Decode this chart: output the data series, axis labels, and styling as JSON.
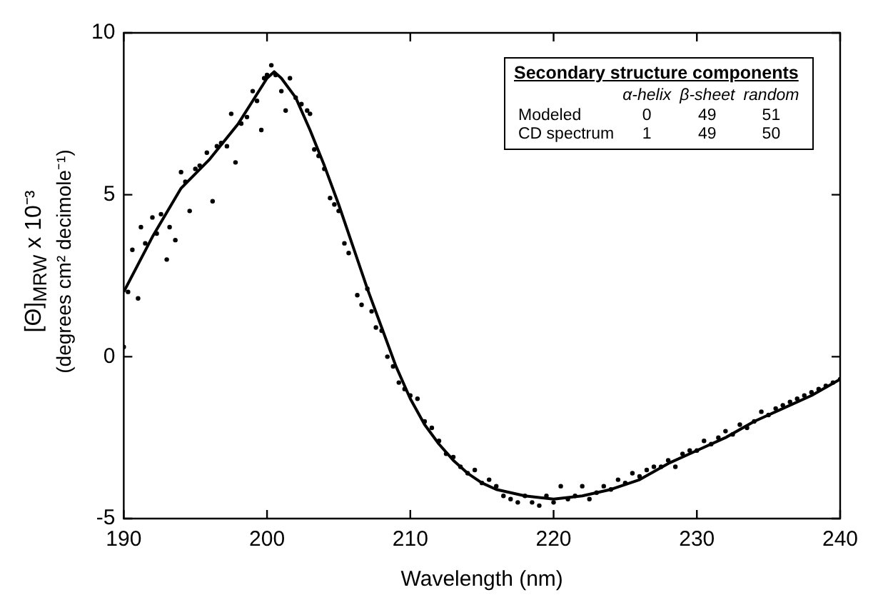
{
  "chart_data": {
    "type": "scatter",
    "xlabel": "Wavelength (nm)",
    "ylabel": "[Θ]$_{MRW}$ x 10⁻³\n(degrees cm² decimole⁻¹)",
    "xlim": [
      190,
      240
    ],
    "xticks": [
      190,
      200,
      210,
      220,
      230,
      240
    ],
    "ylim": [
      -5,
      10
    ],
    "yticks": [
      -5,
      0,
      5,
      10
    ],
    "grid": false,
    "legend": false,
    "annotations": [
      "Secondary structure components",
      "α-helix",
      "β-sheet",
      "random",
      "Modeled",
      "0",
      "49",
      "51",
      "CD spectrum",
      "1",
      "49",
      "50"
    ],
    "series": [
      {
        "color": "#000000",
        "marker": "circle",
        "x": [
          190,
          190.3,
          190.6,
          191,
          191.2,
          191.5,
          192,
          192.3,
          192.6,
          193,
          193.2,
          193.6,
          194,
          194.3,
          194.6,
          195,
          195.3,
          195.8,
          196.2,
          196.5,
          196.8,
          197.2,
          197.5,
          197.8,
          198.2,
          198.6,
          199,
          199.3,
          199.6,
          199.8,
          200,
          200.3,
          200.6,
          201,
          201.3,
          201.6,
          202,
          202.4,
          202.8,
          203,
          203.3,
          203.6,
          204,
          204.4,
          204.7,
          205,
          205.4,
          205.7,
          206.3,
          206.6,
          207,
          207.3,
          207.6,
          208,
          208.4,
          208.8,
          209.2,
          209.6,
          210,
          210.5,
          211,
          211.5,
          212,
          212.5,
          213,
          213.5,
          214,
          214.5,
          215,
          215.5,
          216,
          216.5,
          217,
          217.5,
          218,
          218.5,
          219,
          219.5,
          220,
          220.5,
          221,
          221.5,
          222,
          222.5,
          223,
          223.5,
          224,
          224.5,
          225,
          225.5,
          226,
          226.5,
          227,
          227.5,
          228,
          228.5,
          229,
          229.5,
          230,
          230.5,
          231,
          231.5,
          232,
          232.5,
          233,
          233.5,
          234,
          234.5,
          235,
          235.5,
          236,
          236.5,
          237,
          237.5,
          238,
          238.5,
          239,
          239.5,
          240
        ],
        "values": [
          0.3,
          2.0,
          3.3,
          1.8,
          4.0,
          3.5,
          4.3,
          3.8,
          4.4,
          3.0,
          4.0,
          3.6,
          5.7,
          5.4,
          4.5,
          5.8,
          5.9,
          6.3,
          4.8,
          6.5,
          6.6,
          6.5,
          7.5,
          6.0,
          7.2,
          7.4,
          8.2,
          7.9,
          7.0,
          8.6,
          8.7,
          9.0,
          8.7,
          8.2,
          7.6,
          8.6,
          8.0,
          7.8,
          7.6,
          7.5,
          6.4,
          6.2,
          5.8,
          4.9,
          4.7,
          4.5,
          3.5,
          3.2,
          1.9,
          1.6,
          2.1,
          1.4,
          0.9,
          0.8,
          0.0,
          -0.3,
          -0.8,
          -1.0,
          -1.2,
          -1.3,
          -2.0,
          -2.2,
          -2.6,
          -3.0,
          -3.1,
          -3.4,
          -3.6,
          -3.5,
          -3.9,
          -3.8,
          -4.0,
          -4.3,
          -4.4,
          -4.5,
          -4.3,
          -4.5,
          -4.6,
          -4.3,
          -4.5,
          -4.0,
          -4.4,
          -4.3,
          -4.0,
          -4.4,
          -4.2,
          -4.0,
          -4.1,
          -3.8,
          -3.9,
          -3.6,
          -3.7,
          -3.5,
          -3.4,
          -3.4,
          -3.2,
          -3.4,
          -3.0,
          -2.9,
          -2.9,
          -2.6,
          -2.7,
          -2.5,
          -2.3,
          -2.4,
          -2.1,
          -2.2,
          -2.0,
          -1.7,
          -1.8,
          -1.6,
          -1.5,
          -1.4,
          -1.3,
          -1.2,
          -1.1,
          -1.0,
          -0.9,
          -0.8,
          -0.7
        ]
      },
      {
        "type": "line",
        "color": "#000000",
        "marker": "none",
        "x": [
          190,
          192,
          194,
          196,
          198,
          199,
          200,
          200.5,
          201,
          202,
          203,
          204,
          205,
          206,
          207,
          208,
          209,
          210,
          211,
          212,
          213,
          214,
          215,
          216,
          218,
          220,
          222,
          224,
          226,
          228,
          230,
          232,
          234,
          236,
          238,
          240
        ],
        "values": [
          2.0,
          3.7,
          5.2,
          6.1,
          7.2,
          7.9,
          8.6,
          8.8,
          8.6,
          8.0,
          7.0,
          5.9,
          4.7,
          3.4,
          2.1,
          0.9,
          -0.3,
          -1.3,
          -2.1,
          -2.7,
          -3.2,
          -3.6,
          -3.9,
          -4.1,
          -4.3,
          -4.4,
          -4.3,
          -4.1,
          -3.8,
          -3.3,
          -2.9,
          -2.5,
          -2.0,
          -1.6,
          -1.2,
          -0.7
        ]
      }
    ]
  }
}
